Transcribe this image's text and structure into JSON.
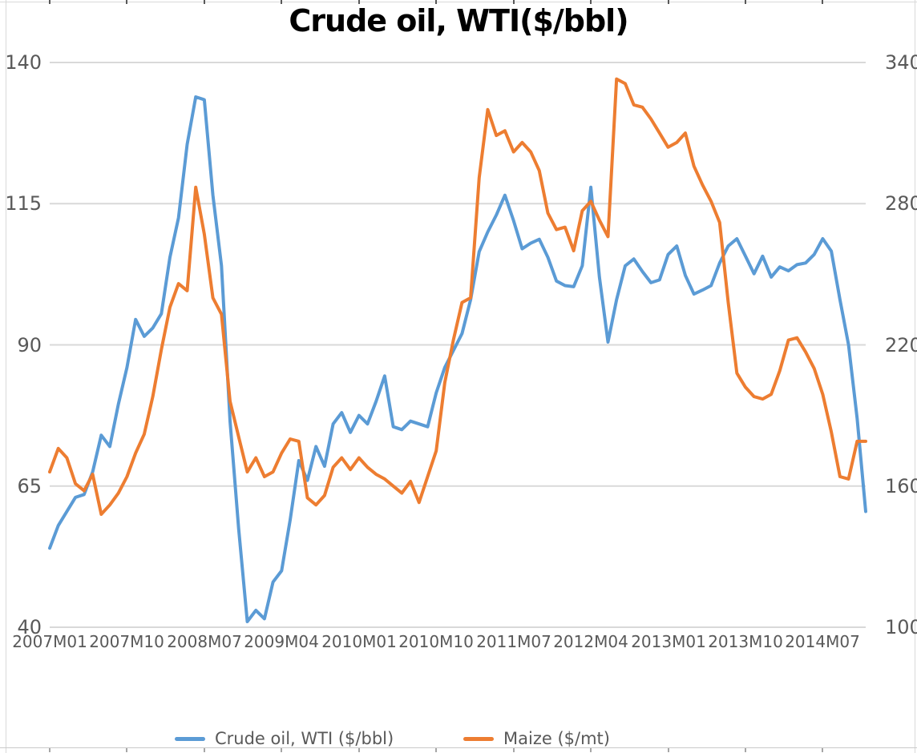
{
  "title": "Crude oil, WTI($/bbl)",
  "colors": {
    "series_blue": "#5B9BD5",
    "series_orange": "#ED7D31",
    "gridline": "#D9D9D9",
    "axis_text": "#595959",
    "title_text": "#000000",
    "frame": "#D9D9D9",
    "edge_tick": "#595959"
  },
  "legend": {
    "items": [
      {
        "label": "Crude oil, WTI ($/bbl)",
        "color": "#5B9BD5"
      },
      {
        "label": "Maize ($/mt)",
        "color": "#ED7D31"
      }
    ]
  },
  "chart_data": {
    "type": "line",
    "title": "Crude oil, WTI($/bbl)",
    "grid": true,
    "legend_position": "bottom",
    "x_axis": {
      "tick_every": 9,
      "tick_labels": [
        "2007M01",
        "2007M10",
        "2008M07",
        "2009M04",
        "2010M01",
        "2010M10",
        "2011M07",
        "2012M04",
        "2013M01",
        "2013M10",
        "2014M07"
      ]
    },
    "left_axis": {
      "min": 40,
      "max": 140,
      "ticks": [
        140,
        115,
        90,
        65,
        40
      ]
    },
    "right_axis": {
      "min": 100,
      "max": 340,
      "ticks": [
        340,
        280,
        220,
        160,
        100
      ]
    },
    "x": [
      "2007M01",
      "2007M02",
      "2007M03",
      "2007M04",
      "2007M05",
      "2007M06",
      "2007M07",
      "2007M08",
      "2007M09",
      "2007M10",
      "2007M11",
      "2007M12",
      "2008M01",
      "2008M02",
      "2008M03",
      "2008M04",
      "2008M05",
      "2008M06",
      "2008M07",
      "2008M08",
      "2008M09",
      "2008M10",
      "2008M11",
      "2008M12",
      "2009M01",
      "2009M02",
      "2009M03",
      "2009M04",
      "2009M05",
      "2009M06",
      "2009M07",
      "2009M08",
      "2009M09",
      "2009M10",
      "2009M11",
      "2009M12",
      "2010M01",
      "2010M02",
      "2010M03",
      "2010M04",
      "2010M05",
      "2010M06",
      "2010M07",
      "2010M08",
      "2010M09",
      "2010M10",
      "2010M11",
      "2010M12",
      "2011M01",
      "2011M02",
      "2011M03",
      "2011M04",
      "2011M05",
      "2011M06",
      "2011M07",
      "2011M08",
      "2011M09",
      "2011M10",
      "2011M11",
      "2011M12",
      "2012M01",
      "2012M02",
      "2012M03",
      "2012M04",
      "2012M05",
      "2012M06",
      "2012M07",
      "2012M08",
      "2012M09",
      "2012M10",
      "2012M11",
      "2012M12",
      "2013M01",
      "2013M02",
      "2013M03",
      "2013M04",
      "2013M05",
      "2013M06",
      "2013M07",
      "2013M08",
      "2013M09",
      "2013M10",
      "2013M11",
      "2013M12",
      "2014M01",
      "2014M02",
      "2014M03",
      "2014M04",
      "2014M05",
      "2014M06",
      "2014M07",
      "2014M08",
      "2014M09",
      "2014M10",
      "2014M11",
      "2014M12"
    ],
    "series": [
      {
        "name": "Crude oil, WTI ($/bbl)",
        "axis": "left",
        "color": "#5B9BD5",
        "values": [
          54,
          58,
          60.5,
          63,
          63.5,
          67.5,
          74,
          72,
          79.5,
          86,
          94.5,
          91.5,
          93,
          95.5,
          105.5,
          112.5,
          125.5,
          133.9,
          133.4,
          116.5,
          104,
          76.5,
          57.5,
          41,
          43,
          41.5,
          48,
          50,
          59,
          69.5,
          66,
          72,
          68.5,
          76,
          78,
          74.5,
          77.5,
          76,
          80,
          84.5,
          75.5,
          75,
          76.5,
          76,
          75.5,
          81.5,
          86,
          89,
          92,
          98,
          106.5,
          110,
          113,
          116.5,
          112,
          107,
          108,
          108.7,
          105.5,
          101.3,
          100.5,
          100.3,
          104,
          117.9,
          102,
          90.5,
          98,
          104,
          105.2,
          103,
          101,
          101.5,
          106,
          107.5,
          102.3,
          99,
          99.7,
          100.5,
          104.5,
          107.5,
          108.8,
          105.7,
          102.6,
          105.7,
          102,
          103.8,
          103.1,
          104.2,
          104.5,
          106,
          108.8,
          106.6,
          98,
          90,
          77,
          60.5
        ]
      },
      {
        "name": "Maize ($/mt)",
        "axis": "right",
        "color": "#ED7D31",
        "values": [
          166,
          176,
          172,
          161,
          158,
          165,
          148,
          152,
          157,
          164,
          174,
          182,
          198,
          218,
          236,
          246,
          243,
          287,
          267,
          240,
          233,
          196,
          181,
          166,
          172,
          164,
          166,
          174,
          180,
          179,
          155,
          152,
          156,
          168,
          172,
          167,
          172,
          168,
          165,
          163,
          160,
          157,
          162,
          153,
          164,
          175,
          204,
          222,
          238,
          240,
          291,
          320,
          309,
          311,
          302,
          306,
          302,
          294,
          276,
          269,
          270,
          260,
          277,
          281,
          273,
          266,
          333,
          331,
          322,
          321,
          316,
          310,
          304,
          306,
          310,
          296,
          288,
          281,
          272,
          238,
          208,
          202,
          198,
          197,
          199,
          209,
          222,
          223,
          217,
          210,
          199,
          183,
          164,
          163,
          179,
          179
        ]
      }
    ]
  }
}
